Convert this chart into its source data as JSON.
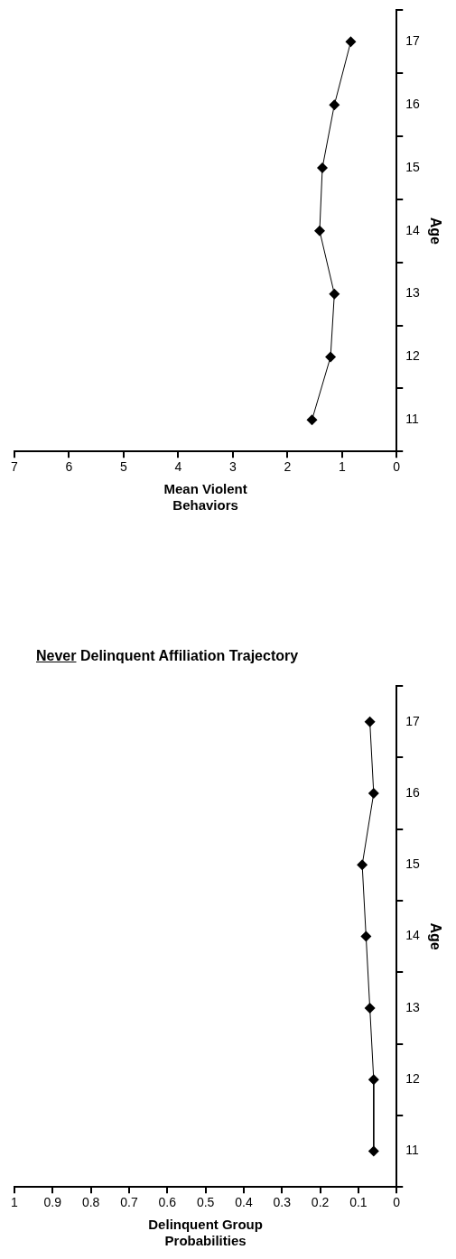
{
  "chart_data": [
    {
      "type": "line",
      "orientation": "horizontal",
      "title": "Never Delinquent Affiliation Trajectory",
      "ylabel": "Age",
      "xlabel": "Delinquent Group Probabilities",
      "categories": [
        "17",
        "16",
        "15",
        "14",
        "13",
        "12",
        "11"
      ],
      "values": [
        0.07,
        0.06,
        0.09,
        0.08,
        0.07,
        0.06,
        0.06
      ],
      "color": "#000000",
      "marker": "diamond",
      "xlim": [
        1,
        0
      ],
      "xticks": [
        0,
        0.1,
        0.2,
        0.3,
        0.4,
        0.5,
        0.6,
        0.7,
        0.8,
        0.9,
        1
      ],
      "grid": false,
      "legend": false
    },
    {
      "type": "line",
      "orientation": "horizontal",
      "ylabel": "Age",
      "xlabel": "Mean Violent Behaviors",
      "categories": [
        "17",
        "16",
        "15",
        "14",
        "13",
        "12",
        "11"
      ],
      "values": [
        0.84,
        1.14,
        1.36,
        1.41,
        1.14,
        1.21,
        1.55
      ],
      "color": "#000000",
      "marker": "diamond",
      "xlim": [
        7,
        0
      ],
      "xticks": [
        0,
        1,
        2,
        3,
        4,
        5,
        6,
        7
      ],
      "grid": false,
      "legend": false
    }
  ]
}
